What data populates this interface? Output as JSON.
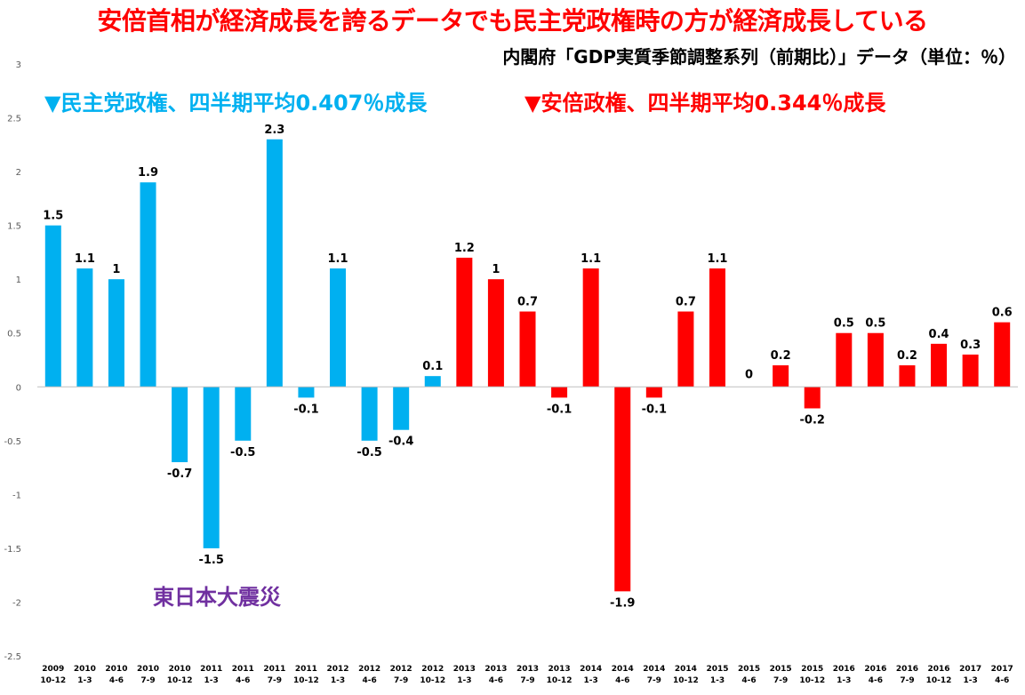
{
  "colors": {
    "dpj": "#00b0f0",
    "abe": "#ff0000",
    "quake": "#7030a0",
    "title": "#ff0000"
  },
  "chart_data": {
    "type": "bar",
    "title": "安倍首相が経済成長を誇るデータでも民主党政権時の方が経済成長している",
    "subtitle": "内閣府「GDP実質季節調整系列（前期比）」データ（単位：％）",
    "ylim": [
      -2.5,
      3
    ],
    "yticks": [
      3,
      2.5,
      2,
      1.5,
      1,
      0.5,
      0,
      -0.5,
      -1,
      -1.5,
      -2,
      -2.5
    ],
    "grid": false,
    "categories": [
      {
        "year": "2009",
        "quarter": "10-12"
      },
      {
        "year": "2010",
        "quarter": "1-3"
      },
      {
        "year": "2010",
        "quarter": "4-6"
      },
      {
        "year": "2010",
        "quarter": "7-9"
      },
      {
        "year": "2010",
        "quarter": "10-12"
      },
      {
        "year": "2011",
        "quarter": "1-3"
      },
      {
        "year": "2011",
        "quarter": "4-6"
      },
      {
        "year": "2011",
        "quarter": "7-9"
      },
      {
        "year": "2011",
        "quarter": "10-12"
      },
      {
        "year": "2012",
        "quarter": "1-3"
      },
      {
        "year": "2012",
        "quarter": "4-6"
      },
      {
        "year": "2012",
        "quarter": "7-9"
      },
      {
        "year": "2012",
        "quarter": "10-12"
      },
      {
        "year": "2013",
        "quarter": "1-3"
      },
      {
        "year": "2013",
        "quarter": "4-6"
      },
      {
        "year": "2013",
        "quarter": "7-9"
      },
      {
        "year": "2013",
        "quarter": "10-12"
      },
      {
        "year": "2014",
        "quarter": "1-3"
      },
      {
        "year": "2014",
        "quarter": "4-6"
      },
      {
        "year": "2014",
        "quarter": "7-9"
      },
      {
        "year": "2014",
        "quarter": "10-12"
      },
      {
        "year": "2015",
        "quarter": "1-3"
      },
      {
        "year": "2015",
        "quarter": "4-6"
      },
      {
        "year": "2015",
        "quarter": "7-9"
      },
      {
        "year": "2015",
        "quarter": "10-12"
      },
      {
        "year": "2016",
        "quarter": "1-3"
      },
      {
        "year": "2016",
        "quarter": "4-6"
      },
      {
        "year": "2016",
        "quarter": "7-9"
      },
      {
        "year": "2016",
        "quarter": "10-12"
      },
      {
        "year": "2017",
        "quarter": "1-3"
      },
      {
        "year": "2017",
        "quarter": "4-6"
      }
    ],
    "values": [
      1.5,
      1.1,
      1,
      1.9,
      -0.7,
      -1.5,
      -0.5,
      2.3,
      -0.1,
      1.1,
      -0.5,
      -0.4,
      0.1,
      1.2,
      1,
      0.7,
      -0.1,
      1.1,
      -1.9,
      -0.1,
      0.7,
      1.1,
      0,
      0.2,
      -0.2,
      0.5,
      0.5,
      0.2,
      0.4,
      0.3,
      0.6
    ],
    "data_labels": [
      "1.5",
      "1.1",
      "1",
      "1.9",
      "-0.7",
      "-1.5",
      "-0.5",
      "2.3",
      "-0.1",
      "1.1",
      "-0.5",
      "-0.4",
      "0.1",
      "1.2",
      "1",
      "0.7",
      "-0.1",
      "1.1",
      "-1.9",
      "-0.1",
      "0.7",
      "1.1",
      "0",
      "0.2",
      "-0.2",
      "0.5",
      "0.5",
      "0.2",
      "0.4",
      "0.3",
      "0.6"
    ],
    "groups": [
      "dpj",
      "dpj",
      "dpj",
      "dpj",
      "dpj",
      "dpj",
      "dpj",
      "dpj",
      "dpj",
      "dpj",
      "dpj",
      "dpj",
      "dpj",
      "abe",
      "abe",
      "abe",
      "abe",
      "abe",
      "abe",
      "abe",
      "abe",
      "abe",
      "abe",
      "abe",
      "abe",
      "abe",
      "abe",
      "abe",
      "abe",
      "abe",
      "abe"
    ],
    "annotations": {
      "dpj": "▼民主党政権、四半期平均0.407％成長",
      "abe": "▼安倍政権、四半期平均0.344％成長",
      "quake": "東日本大震災"
    }
  }
}
